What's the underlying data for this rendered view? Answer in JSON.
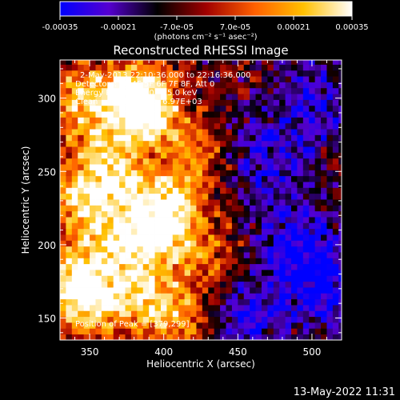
{
  "colorbar": {
    "tick_labels": [
      "-0.00035",
      "-0.00021",
      "-7.0e-05",
      "7.0e-05",
      "0.00021",
      "0.00035"
    ],
    "tick_values": [
      -0.00035,
      -0.00021,
      -7e-05,
      7e-05,
      0.00021,
      0.00035
    ],
    "range": [
      -0.00035,
      0.00035
    ],
    "units_label": "(photons cm⁻² s⁻¹ asec⁻²)",
    "colormap": [
      "#0000ff",
      "#5500d0",
      "#000000",
      "#a00000",
      "#ff6000",
      "#ffc000",
      "#ffffff"
    ]
  },
  "chart_data": {
    "type": "heatmap",
    "title": "Reconstructed RHESSI Image",
    "xlabel": "Heliocentric X (arcsec)",
    "ylabel": "Heliocentric Y (arcsec)",
    "xlim": [
      330,
      520
    ],
    "ylim": [
      135,
      326
    ],
    "x_ticks": [
      350,
      400,
      450,
      500
    ],
    "y_ticks": [
      150,
      200,
      250,
      300
    ],
    "annotations": [
      "2-May-2013 22:10:36.000 to 22:16:36.000",
      "Detectors: 3F 4F 5F 6F 7F 8F, Att 0",
      "Energy Range: 12.0 - 25.0 keV",
      "Clean    Total Counts: 6.97E+03",
      "Position of Peak = [379,299]"
    ],
    "peak_position": [
      379,
      299
    ],
    "bright_regions": [
      {
        "x": 379,
        "y": 302,
        "level": 1.0
      },
      {
        "x": 345,
        "y": 300,
        "level": 0.75
      },
      {
        "x": 392,
        "y": 290,
        "level": 0.85
      },
      {
        "x": 358,
        "y": 265,
        "level": 0.7
      },
      {
        "x": 345,
        "y": 230,
        "level": 0.8
      },
      {
        "x": 372,
        "y": 238,
        "level": 0.75
      },
      {
        "x": 405,
        "y": 226,
        "level": 0.9
      },
      {
        "x": 395,
        "y": 205,
        "level": 0.85
      },
      {
        "x": 368,
        "y": 200,
        "level": 0.7
      },
      {
        "x": 340,
        "y": 180,
        "level": 0.85
      },
      {
        "x": 350,
        "y": 160,
        "level": 0.9
      },
      {
        "x": 385,
        "y": 165,
        "level": 0.75
      },
      {
        "x": 410,
        "y": 150,
        "level": 0.65
      },
      {
        "x": 420,
        "y": 260,
        "level": 0.55
      },
      {
        "x": 430,
        "y": 190,
        "level": 0.5
      }
    ],
    "dark_regions": [
      {
        "x": 470,
        "y": 260,
        "level": -0.6
      },
      {
        "x": 490,
        "y": 200,
        "level": -0.7
      },
      {
        "x": 455,
        "y": 150,
        "level": -0.6
      },
      {
        "x": 505,
        "y": 300,
        "level": -0.55
      },
      {
        "x": 510,
        "y": 170,
        "level": -0.65
      }
    ]
  },
  "footer": {
    "timestamp": "13-May-2022 11:31"
  }
}
